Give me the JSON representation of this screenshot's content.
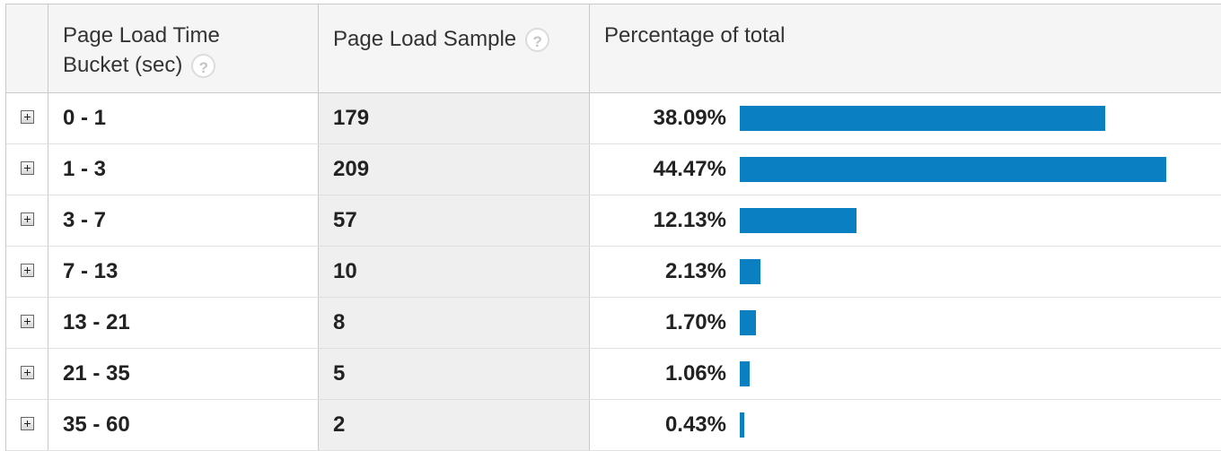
{
  "headers": {
    "bucket": "Page Load Time Bucket (sec)",
    "sample": "Page Load Sample",
    "percentage": "Percentage of total",
    "help_glyph": "?"
  },
  "colors": {
    "bar": "#0a7fc2"
  },
  "rows": [
    {
      "bucket": "0 - 1",
      "sample": "179",
      "percent_label": "38.09%",
      "percent": 38.09
    },
    {
      "bucket": "1 - 3",
      "sample": "209",
      "percent_label": "44.47%",
      "percent": 44.47
    },
    {
      "bucket": "3 - 7",
      "sample": "57",
      "percent_label": "12.13%",
      "percent": 12.13
    },
    {
      "bucket": "7 - 13",
      "sample": "10",
      "percent_label": "2.13%",
      "percent": 2.13
    },
    {
      "bucket": "13 - 21",
      "sample": "8",
      "percent_label": "1.70%",
      "percent": 1.7
    },
    {
      "bucket": "21 - 35",
      "sample": "5",
      "percent_label": "1.06%",
      "percent": 1.06
    },
    {
      "bucket": "35 - 60",
      "sample": "2",
      "percent_label": "0.43%",
      "percent": 0.43
    }
  ]
}
